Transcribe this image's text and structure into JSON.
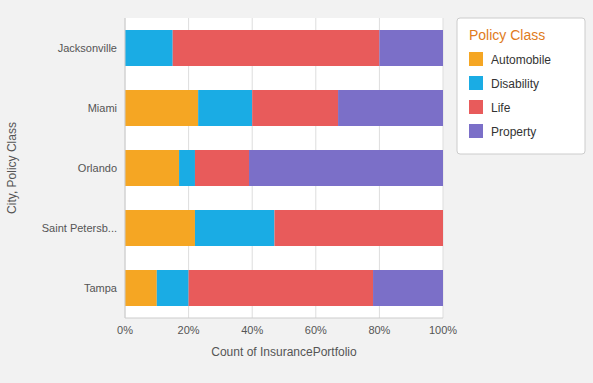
{
  "chart_data": {
    "type": "bar",
    "orientation": "horizontal",
    "stacked": true,
    "x_label": "Count of InsurancePortfolio",
    "y_label": "City, Policy Class",
    "legend_title": "Policy Class",
    "categories": [
      "Tampa",
      "Saint Petersb...",
      "Orlando",
      "Miami",
      "Jacksonville"
    ],
    "series": [
      {
        "name": "Automobile",
        "color": "#F5A623",
        "values": [
          10.0,
          22.0,
          17.0,
          23.0,
          0.0
        ]
      },
      {
        "name": "Disability",
        "color": "#1AACE4",
        "values": [
          10.0,
          25.0,
          5.0,
          17.0,
          15.0
        ]
      },
      {
        "name": "Life",
        "color": "#E85B5B",
        "values": [
          58.0,
          53.0,
          17.0,
          27.0,
          65.0
        ]
      },
      {
        "name": "Property",
        "color": "#7B6FC8",
        "values": [
          22.0,
          0.0,
          61.0,
          33.0,
          20.0
        ]
      }
    ],
    "xlim": [
      0,
      100
    ],
    "xticks": [
      {
        "value": 0,
        "label": "0%"
      },
      {
        "value": 20,
        "label": "20%"
      },
      {
        "value": 40,
        "label": "40%"
      },
      {
        "value": 60,
        "label": "60%"
      },
      {
        "value": 80,
        "label": "80%"
      },
      {
        "value": 100,
        "label": "100%"
      }
    ],
    "grid": true,
    "legend": "upper right"
  }
}
